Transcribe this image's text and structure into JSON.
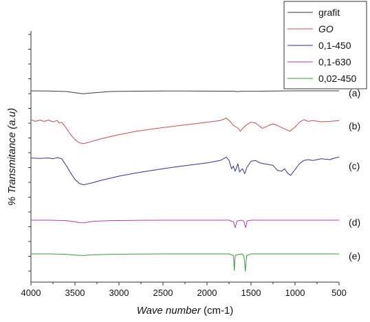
{
  "chart_data": {
    "type": "line",
    "title": "",
    "xlabel": "Wave number",
    "xlabel_unit": "(cm-1)",
    "ylabel": "% Transmitance (a.u)",
    "xlim": [
      4000,
      500
    ],
    "x_reversed": true,
    "x_ticks": [
      4000,
      3500,
      3000,
      2500,
      2000,
      1500,
      1000,
      500
    ],
    "y_tick_labels_shown": false,
    "grid": false,
    "legend_position": "top-right",
    "series": [
      {
        "name": "grafit",
        "label": "(a)",
        "color": "#3a3a3a",
        "points": [
          [
            4000,
            2.0
          ],
          [
            3800,
            2.02
          ],
          [
            3600,
            2.08
          ],
          [
            3450,
            2.3
          ],
          [
            3400,
            2.35
          ],
          [
            3300,
            2.25
          ],
          [
            3100,
            2.08
          ],
          [
            2800,
            2.04
          ],
          [
            2500,
            2.02
          ],
          [
            2200,
            2.02
          ],
          [
            2100,
            2.03
          ],
          [
            1700,
            2.04
          ],
          [
            1650,
            2.1
          ],
          [
            1620,
            2.05
          ],
          [
            1400,
            2.05
          ],
          [
            1200,
            2.02
          ],
          [
            1000,
            2.0
          ],
          [
            800,
            2.0
          ],
          [
            500,
            2.0
          ]
        ]
      },
      {
        "name": "GO",
        "label": "(b)",
        "color": "#c0504d",
        "points": [
          [
            4000,
            1.5
          ],
          [
            3950,
            1.7
          ],
          [
            3900,
            1.55
          ],
          [
            3850,
            1.7
          ],
          [
            3800,
            1.55
          ],
          [
            3750,
            1.75
          ],
          [
            3700,
            1.6
          ],
          [
            3680,
            1.9
          ],
          [
            3650,
            1.8
          ],
          [
            3600,
            2.5
          ],
          [
            3550,
            3.3
          ],
          [
            3500,
            3.9
          ],
          [
            3450,
            4.3
          ],
          [
            3400,
            4.4
          ],
          [
            3300,
            4.1
          ],
          [
            3200,
            3.8
          ],
          [
            3000,
            3.3
          ],
          [
            2800,
            2.9
          ],
          [
            2500,
            2.45
          ],
          [
            2300,
            2.2
          ],
          [
            2000,
            1.8
          ],
          [
            1850,
            1.6
          ],
          [
            1780,
            1.3
          ],
          [
            1730,
            1.8
          ],
          [
            1700,
            2.2
          ],
          [
            1650,
            2.5
          ],
          [
            1620,
            2.9
          ],
          [
            1590,
            2.5
          ],
          [
            1550,
            2.1
          ],
          [
            1500,
            1.8
          ],
          [
            1450,
            1.9
          ],
          [
            1400,
            2.3
          ],
          [
            1370,
            2.55
          ],
          [
            1300,
            2.2
          ],
          [
            1250,
            2.0
          ],
          [
            1200,
            2.2
          ],
          [
            1100,
            2.7
          ],
          [
            1060,
            2.9
          ],
          [
            1000,
            2.4
          ],
          [
            950,
            1.8
          ],
          [
            900,
            1.5
          ],
          [
            850,
            1.7
          ],
          [
            800,
            1.6
          ],
          [
            700,
            1.75
          ],
          [
            600,
            1.7
          ],
          [
            500,
            1.6
          ]
        ]
      },
      {
        "name": "0,1-450",
        "label": "(c)",
        "color": "#2e3192",
        "points": [
          [
            4000,
            1.3
          ],
          [
            3900,
            1.35
          ],
          [
            3800,
            1.3
          ],
          [
            3750,
            1.4
          ],
          [
            3700,
            1.25
          ],
          [
            3650,
            1.4
          ],
          [
            3600,
            2.2
          ],
          [
            3550,
            3.1
          ],
          [
            3500,
            3.9
          ],
          [
            3450,
            4.4
          ],
          [
            3400,
            4.55
          ],
          [
            3300,
            4.3
          ],
          [
            3200,
            4.0
          ],
          [
            3000,
            3.5
          ],
          [
            2800,
            3.1
          ],
          [
            2500,
            2.6
          ],
          [
            2300,
            2.3
          ],
          [
            2000,
            1.9
          ],
          [
            1850,
            1.6
          ],
          [
            1780,
            1.2
          ],
          [
            1750,
            1.6
          ],
          [
            1720,
            2.6
          ],
          [
            1700,
            2.3
          ],
          [
            1680,
            2.9
          ],
          [
            1650,
            2.0
          ],
          [
            1630,
            3.0
          ],
          [
            1600,
            2.6
          ],
          [
            1570,
            3.2
          ],
          [
            1550,
            2.5
          ],
          [
            1500,
            1.7
          ],
          [
            1450,
            1.6
          ],
          [
            1400,
            1.9
          ],
          [
            1350,
            2.0
          ],
          [
            1300,
            2.1
          ],
          [
            1250,
            2.2
          ],
          [
            1200,
            2.8
          ],
          [
            1150,
            2.9
          ],
          [
            1120,
            2.6
          ],
          [
            1080,
            3.2
          ],
          [
            1050,
            3.4
          ],
          [
            1000,
            2.7
          ],
          [
            950,
            2.0
          ],
          [
            900,
            1.6
          ],
          [
            850,
            1.5
          ],
          [
            800,
            1.6
          ],
          [
            700,
            1.4
          ],
          [
            600,
            1.5
          ],
          [
            550,
            1.3
          ],
          [
            500,
            1.2
          ]
        ]
      },
      {
        "name": "0,1-630",
        "label": "(d)",
        "color": "#b03aa8",
        "points": [
          [
            4000,
            2.0
          ],
          [
            3800,
            2.0
          ],
          [
            3600,
            2.05
          ],
          [
            3500,
            2.2
          ],
          [
            3450,
            2.3
          ],
          [
            3400,
            2.32
          ],
          [
            3300,
            2.15
          ],
          [
            3100,
            2.05
          ],
          [
            2800,
            2.02
          ],
          [
            2500,
            2.0
          ],
          [
            2000,
            2.0
          ],
          [
            1750,
            2.0
          ],
          [
            1700,
            2.2
          ],
          [
            1680,
            2.9
          ],
          [
            1660,
            2.1
          ],
          [
            1640,
            2.05
          ],
          [
            1600,
            2.0
          ],
          [
            1580,
            2.2
          ],
          [
            1560,
            2.9
          ],
          [
            1545,
            2.1
          ],
          [
            1500,
            2.0
          ],
          [
            1200,
            2.0
          ],
          [
            1000,
            2.0
          ],
          [
            800,
            2.0
          ],
          [
            500,
            2.0
          ]
        ]
      },
      {
        "name": "0,02-450",
        "label": "(e)",
        "color": "#3a9a3a",
        "points": [
          [
            4000,
            2.0
          ],
          [
            3800,
            2.0
          ],
          [
            3600,
            2.05
          ],
          [
            3500,
            2.15
          ],
          [
            3400,
            2.2
          ],
          [
            3300,
            2.12
          ],
          [
            3100,
            2.05
          ],
          [
            2800,
            2.02
          ],
          [
            2500,
            2.0
          ],
          [
            2000,
            2.0
          ],
          [
            1750,
            2.0
          ],
          [
            1700,
            2.2
          ],
          [
            1690,
            4.0
          ],
          [
            1680,
            2.2
          ],
          [
            1640,
            2.05
          ],
          [
            1600,
            2.0
          ],
          [
            1580,
            2.3
          ],
          [
            1565,
            4.1
          ],
          [
            1550,
            2.2
          ],
          [
            1500,
            2.0
          ],
          [
            1200,
            2.0
          ],
          [
            1000,
            2.0
          ],
          [
            800,
            2.0
          ],
          [
            500,
            2.0
          ]
        ]
      }
    ]
  }
}
